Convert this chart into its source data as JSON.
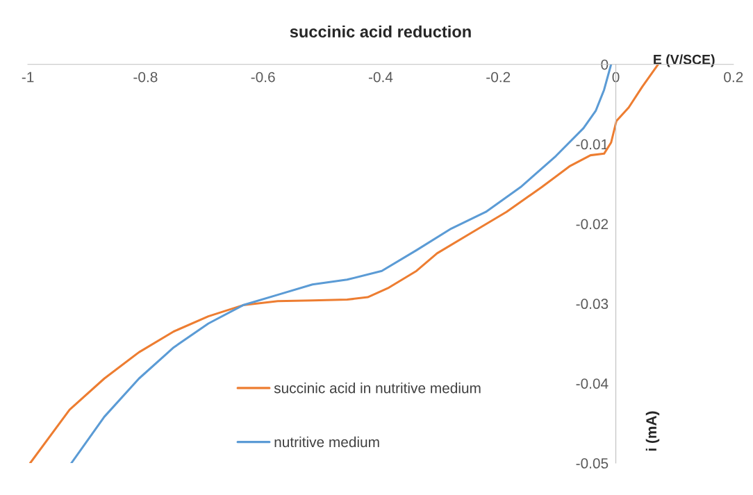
{
  "chart_data": {
    "type": "line",
    "title": "succinic acid reduction",
    "xlabel": "E (V/SCE)",
    "ylabel": "i (mA)",
    "xlim": [
      -1,
      0.2
    ],
    "xticks": [
      -1,
      -0.8,
      -0.6,
      -0.4,
      -0.2,
      0,
      0.2
    ],
    "ylim": [
      -0.05,
      0
    ],
    "yticks": [
      -0.05,
      -0.04,
      -0.03,
      -0.02,
      -0.01,
      0
    ],
    "grid": false,
    "legend": "bottom",
    "marker": "none",
    "line_style": "solid",
    "series": [
      {
        "name": "succinic acid in nutritive medium",
        "color": "#ed7d31",
        "x": [
          -0.996,
          -0.929,
          -0.87,
          -0.811,
          -0.752,
          -0.693,
          -0.634,
          -0.575,
          -0.516,
          -0.457,
          -0.422,
          -0.386,
          -0.339,
          -0.304,
          -0.245,
          -0.186,
          -0.126,
          -0.079,
          -0.043,
          -0.02,
          -0.008,
          0.001,
          0.022,
          0.045,
          0.072
        ],
        "values": [
          -0.05,
          -0.0433,
          -0.0394,
          -0.0361,
          -0.0335,
          -0.0316,
          -0.0302,
          -0.0297,
          -0.0296,
          -0.0295,
          -0.0292,
          -0.028,
          -0.0259,
          -0.0237,
          -0.0211,
          -0.0185,
          -0.0154,
          -0.0128,
          -0.0114,
          -0.0112,
          -0.0098,
          -0.0071,
          -0.0054,
          -0.0028,
          0
        ]
      },
      {
        "name": "nutritive medium",
        "color": "#5b9bd5",
        "x": [
          -0.926,
          -0.87,
          -0.811,
          -0.752,
          -0.693,
          -0.634,
          -0.575,
          -0.516,
          -0.457,
          -0.398,
          -0.339,
          -0.28,
          -0.221,
          -0.162,
          -0.102,
          -0.055,
          -0.034,
          -0.02,
          -0.008
        ],
        "values": [
          -0.05,
          -0.0442,
          -0.0394,
          -0.0355,
          -0.0325,
          -0.0302,
          -0.0289,
          -0.0276,
          -0.027,
          -0.0259,
          -0.0233,
          -0.0206,
          -0.0185,
          -0.0154,
          -0.0115,
          -0.008,
          -0.0058,
          -0.0032,
          0
        ]
      }
    ]
  }
}
